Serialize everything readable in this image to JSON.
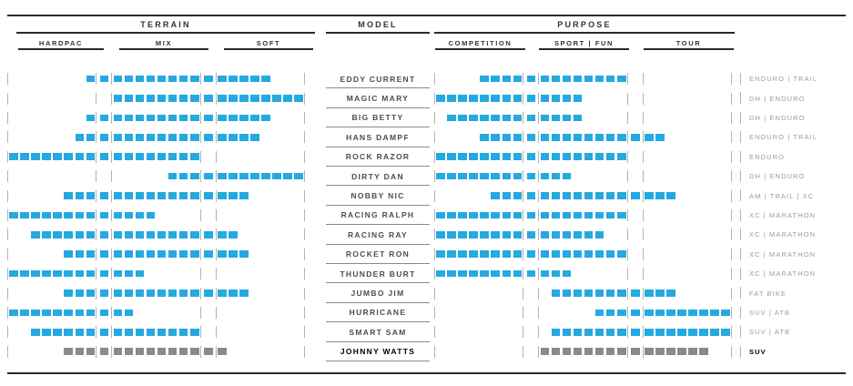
{
  "colors": {
    "blue": "#24a9e1",
    "gray": "#8a8a8a",
    "rule": "#2a2a2a",
    "tick": "#b3b3b3"
  },
  "headers": {
    "terrain": {
      "label": "TERRAIN",
      "sub": [
        "HARDPAC",
        "MIX",
        "SOFT"
      ]
    },
    "model": {
      "label": "MODEL"
    },
    "purpose": {
      "label": "PURPOSE",
      "sub": [
        "COMPETITION",
        "SPORT | FUN",
        "TOUR"
      ]
    }
  },
  "chart_data": {
    "type": "table",
    "title": "Tire model comparison matrix: terrain coverage vs purpose coverage",
    "scale_note": "Each axis (terrain, purpose) is a 26-unit segmented bar: units 1-8 = first sub-column, 9 = boundary, 10-17 = middle sub-column, 18 = boundary, 19-26 = last sub-column",
    "terrain_subcolumns": [
      "HARDPAC",
      "MIX",
      "SOFT"
    ],
    "purpose_subcolumns": [
      "COMPETITION",
      "SPORT | FUN",
      "TOUR"
    ],
    "rows": [
      {
        "model": "EDDY CURRENT",
        "terrain": [
          8,
          23
        ],
        "purpose": [
          5,
          17
        ],
        "category": "ENDURO | TRAIL",
        "color": "blue",
        "bold": false
      },
      {
        "model": "MAGIC MARY",
        "terrain": [
          10,
          26
        ],
        "purpose": [
          1,
          13
        ],
        "category": "DH | ENDURO",
        "color": "blue",
        "bold": false
      },
      {
        "model": "BIG BETTY",
        "terrain": [
          8,
          23
        ],
        "purpose": [
          2,
          13
        ],
        "category": "DH | ENDURO",
        "color": "blue",
        "bold": false
      },
      {
        "model": "HANS DAMPF",
        "terrain": [
          7,
          22
        ],
        "purpose": [
          5,
          20
        ],
        "category": "ENDURO | TRAIL",
        "color": "blue",
        "bold": false
      },
      {
        "model": "ROCK RAZOR",
        "terrain": [
          1,
          17
        ],
        "purpose": [
          1,
          17
        ],
        "category": "ENDURO",
        "color": "blue",
        "bold": false
      },
      {
        "model": "DIRTY DAN",
        "terrain": [
          15,
          26
        ],
        "purpose": [
          1,
          12
        ],
        "category": "DH | ENDURO",
        "color": "blue",
        "bold": false
      },
      {
        "model": "NOBBY NIC",
        "terrain": [
          6,
          21
        ],
        "purpose": [
          6,
          21
        ],
        "category": "AM | TRAIL | XC",
        "color": "blue",
        "bold": false
      },
      {
        "model": "RACING RALPH",
        "terrain": [
          1,
          13
        ],
        "purpose": [
          1,
          17
        ],
        "category": "XC | MARATHON",
        "color": "blue",
        "bold": false
      },
      {
        "model": "RACING RAY",
        "terrain": [
          3,
          20
        ],
        "purpose": [
          1,
          15
        ],
        "category": "XC | MARATHON",
        "color": "blue",
        "bold": false
      },
      {
        "model": "ROCKET RON",
        "terrain": [
          6,
          21
        ],
        "purpose": [
          1,
          17
        ],
        "category": "XC | MARATHON",
        "color": "blue",
        "bold": false
      },
      {
        "model": "THUNDER BURT",
        "terrain": [
          1,
          12
        ],
        "purpose": [
          1,
          12
        ],
        "category": "XC | MARATHON",
        "color": "blue",
        "bold": false
      },
      {
        "model": "JUMBO JIM",
        "terrain": [
          6,
          21
        ],
        "purpose": [
          11,
          21
        ],
        "category": "FAT BIKE",
        "color": "blue",
        "bold": false
      },
      {
        "model": "HURRICANE",
        "terrain": [
          1,
          11
        ],
        "purpose": [
          15,
          26
        ],
        "category": "SUV | ATB",
        "color": "blue",
        "bold": false
      },
      {
        "model": "SMART SAM",
        "terrain": [
          3,
          17
        ],
        "purpose": [
          11,
          26
        ],
        "category": "SUV | ATB",
        "color": "blue",
        "bold": false
      },
      {
        "model": "JOHNNY WATTS",
        "terrain": [
          6,
          19
        ],
        "purpose": [
          10,
          24
        ],
        "category": "SUV",
        "color": "gray",
        "bold": true
      }
    ]
  }
}
